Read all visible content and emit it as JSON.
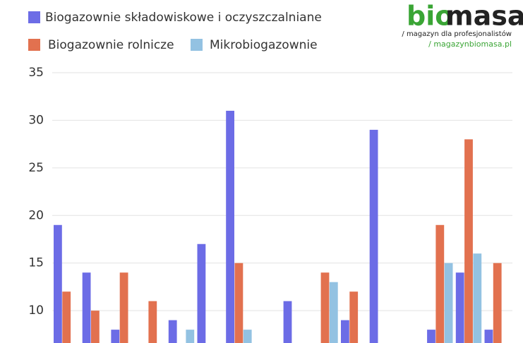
{
  "chart_data": {
    "type": "bar",
    "categories": [
      null,
      null,
      null,
      null,
      null,
      null,
      null,
      null,
      null,
      null,
      null,
      null,
      null,
      null,
      null,
      null
    ],
    "series": [
      {
        "name": "Biogazownie składowiskowe i oczyszczalniane",
        "color": "#6c6ce6",
        "values": [
          19,
          14,
          8,
          null,
          9,
          17,
          31,
          null,
          11,
          null,
          9,
          29,
          null,
          8,
          14,
          8
        ]
      },
      {
        "name": "Biogazownie rolnicze",
        "color": "#e2714f",
        "values": [
          12,
          10,
          14,
          11,
          null,
          null,
          15,
          null,
          null,
          14,
          12,
          null,
          null,
          19,
          28,
          15
        ]
      },
      {
        "name": "Mikrobiogazownie",
        "color": "#93c2e2",
        "values": [
          null,
          null,
          null,
          null,
          8,
          null,
          8,
          null,
          null,
          13,
          null,
          null,
          null,
          15,
          16,
          null
        ]
      }
    ],
    "ylim": [
      6.6,
      35
    ],
    "yticks": [
      10,
      15,
      20,
      25,
      30,
      35
    ],
    "grid": true
  },
  "logo": {
    "brand_green": "bio",
    "brand_dark": "masa",
    "tagline": "/ magazyn dla profesjonalistów",
    "url": "/ magazynbiomasa.pl"
  }
}
